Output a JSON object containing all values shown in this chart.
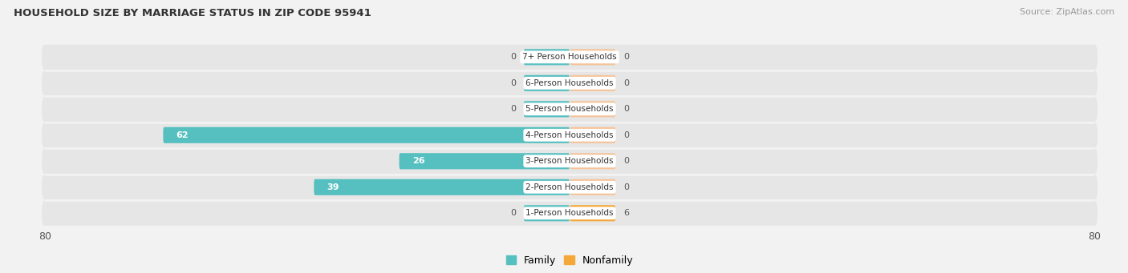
{
  "title": "HOUSEHOLD SIZE BY MARRIAGE STATUS IN ZIP CODE 95941",
  "source": "Source: ZipAtlas.com",
  "categories": [
    "7+ Person Households",
    "6-Person Households",
    "5-Person Households",
    "4-Person Households",
    "3-Person Households",
    "2-Person Households",
    "1-Person Households"
  ],
  "family_values": [
    0,
    0,
    0,
    62,
    26,
    39,
    0
  ],
  "nonfamily_values": [
    0,
    0,
    0,
    0,
    0,
    0,
    6
  ],
  "family_color": "#56bfc0",
  "nonfamily_color": "#f5c49a",
  "nonfamily_color_1person": "#f5a83a",
  "xlim": 80,
  "background_color": "#f2f2f2",
  "row_bg_color": "#e6e6e6",
  "bar_height": 0.62,
  "min_bar_size": 7,
  "label_bg_color": "#ffffff"
}
